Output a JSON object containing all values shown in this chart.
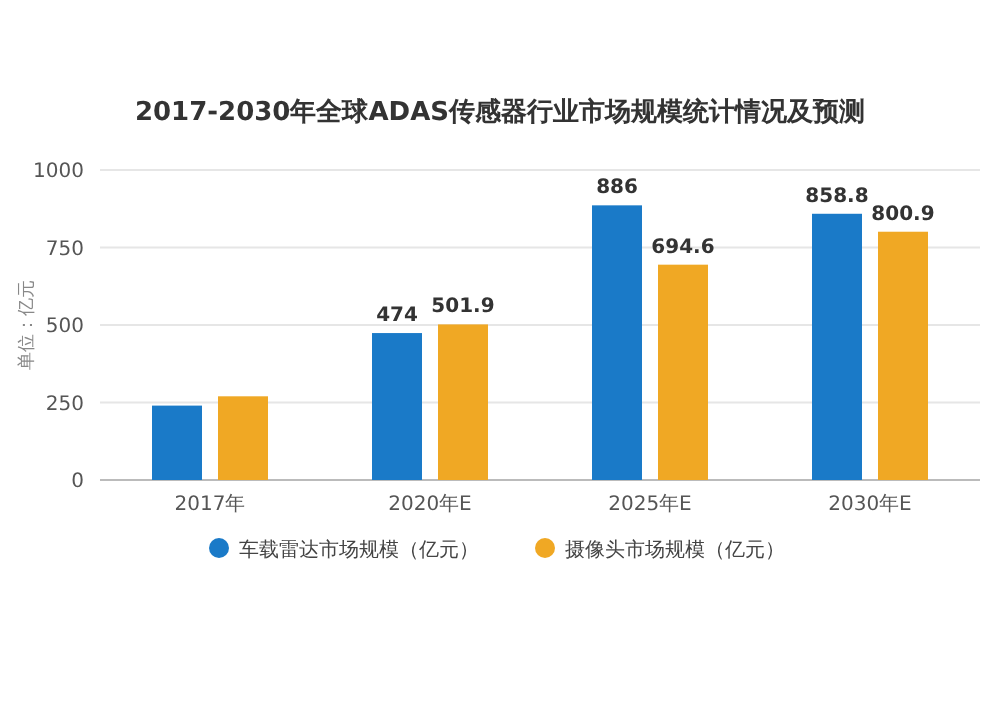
{
  "chart_data": {
    "type": "bar",
    "title": "2017-2030年全球ADAS传感器行业市场规模统计情况及预测",
    "ylabel": "单位：亿元",
    "categories": [
      "2017年",
      "2020年E",
      "2025年E",
      "2030年E"
    ],
    "series": [
      {
        "name": "车载雷达市场规模（亿元）",
        "color": "#1a7ac8",
        "values": [
          240,
          474,
          886,
          858.8
        ],
        "value_labels": [
          null,
          "474",
          "886",
          "858.8"
        ]
      },
      {
        "name": "摄像头市场规模（亿元）",
        "color": "#f0a824",
        "values": [
          270,
          501.9,
          694.6,
          800.9
        ],
        "value_labels": [
          null,
          "501.9",
          "694.6",
          "800.9"
        ]
      }
    ],
    "ylim": [
      0,
      1000
    ],
    "yticks": [
      0,
      250,
      500,
      750,
      1000
    ],
    "grid": "y",
    "legend": "bottom"
  }
}
